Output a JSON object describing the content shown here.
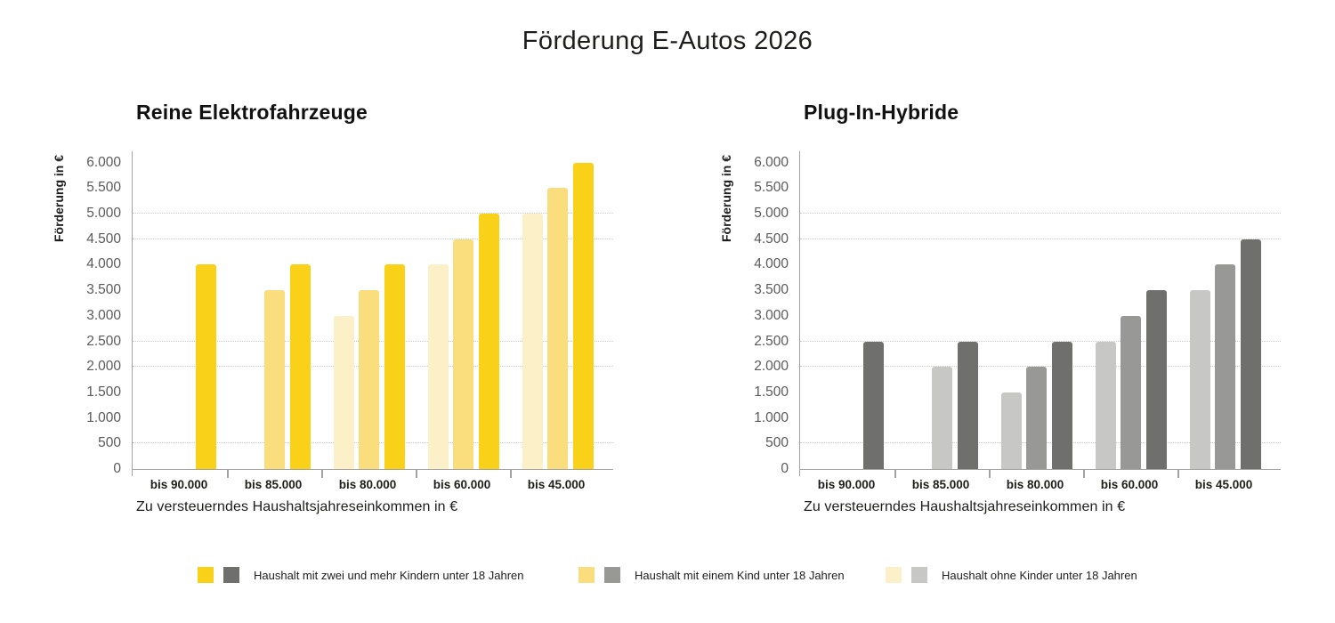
{
  "page_title": "Förderung E-Autos 2026",
  "colors": {
    "background": "#ffffff",
    "text": "#1d1d1b",
    "axis": "#a3a3a3",
    "grid": "#c9c9c9",
    "y_tick_label": "#5a5a5a",
    "palettes": {
      "yellow": {
        "light": "#FBF0C7",
        "medium": "#FADE7D",
        "dark": "#F9D118"
      },
      "gray": {
        "light": "#C7C7C5",
        "medium": "#989897",
        "dark": "#6F6F6E"
      }
    }
  },
  "y_axis": {
    "title": "Förderung in €",
    "max": 6000,
    "step": 500,
    "tick_labels": [
      "6.000",
      "5.500",
      "5.000",
      "4.500",
      "4.000",
      "3.500",
      "3.000",
      "2.500",
      "2.000",
      "1.500",
      "1.000",
      "500",
      "0"
    ]
  },
  "x_axis": {
    "title": "Zu versteuerndes Haushaltsjahreseinkommen in €",
    "categories": [
      "bis 90.000",
      "bis 85.000",
      "bis 80.000",
      "bis 60.000",
      "bis 45.000"
    ]
  },
  "gridline_values": [
    5000,
    4500,
    2500,
    2000,
    500
  ],
  "chart_data": [
    {
      "type": "bar",
      "title": "Reine Elektrofahrzeuge",
      "palette": "yellow",
      "categories": [
        "bis 90.000",
        "bis 85.000",
        "bis 80.000",
        "bis 60.000",
        "bis 45.000"
      ],
      "series": [
        {
          "name": "Haushalt ohne Kinder unter 18 Jahren",
          "shade": "light",
          "values": [
            null,
            null,
            3000,
            4000,
            5000
          ]
        },
        {
          "name": "Haushalt mit einem Kind unter 18 Jahren",
          "shade": "medium",
          "values": [
            null,
            3500,
            3500,
            4500,
            5500
          ]
        },
        {
          "name": "Haushalt mit zwei und mehr Kindern unter 18 Jahren",
          "shade": "dark",
          "values": [
            4000,
            4000,
            4000,
            5000,
            6000
          ]
        }
      ],
      "xlabel": "Zu versteuerndes Haushaltsjahreseinkommen in €",
      "ylabel": "Förderung in €",
      "ylim": [
        0,
        6000
      ],
      "grid": "horizontal dotted lines at 5000, 4500, 2500, 2000, 500",
      "legend_position": "shared bottom"
    },
    {
      "type": "bar",
      "title": "Plug-In-Hybride",
      "palette": "gray",
      "categories": [
        "bis 90.000",
        "bis 85.000",
        "bis 80.000",
        "bis 60.000",
        "bis 45.000"
      ],
      "series": [
        {
          "name": "Haushalt ohne Kinder unter 18 Jahren",
          "shade": "light",
          "values": [
            null,
            2000,
            1500,
            2500,
            3500
          ]
        },
        {
          "name": "Haushalt mit einem Kind unter 18 Jahren",
          "shade": "medium",
          "values": [
            null,
            null,
            2000,
            3000,
            4000
          ]
        },
        {
          "name": "Haushalt mit zwei und mehr Kindern unter 18 Jahren",
          "shade": "dark",
          "values": [
            2500,
            2500,
            2500,
            3500,
            4500
          ]
        }
      ],
      "xlabel": "Zu versteuerndes Haushaltsjahreseinkommen in €",
      "ylabel": "Förderung in €",
      "ylim": [
        0,
        6000
      ],
      "grid": "horizontal dotted lines at 5000, 4500, 2500, 2000, 500",
      "legend_position": "shared bottom"
    }
  ],
  "legend": {
    "items": [
      {
        "label": "Haushalt mit zwei und mehr Kindern unter 18 Jahren",
        "swatches": [
          "#F9D118",
          "#6F6F6E"
        ]
      },
      {
        "label": "Haushalt mit einem Kind unter 18 Jahren",
        "swatches": [
          "#FADE7D",
          "#989897"
        ]
      },
      {
        "label": "Haushalt ohne Kinder unter 18 Jahren",
        "swatches": [
          "#FBF0C7",
          "#C7C7C5"
        ]
      }
    ]
  }
}
